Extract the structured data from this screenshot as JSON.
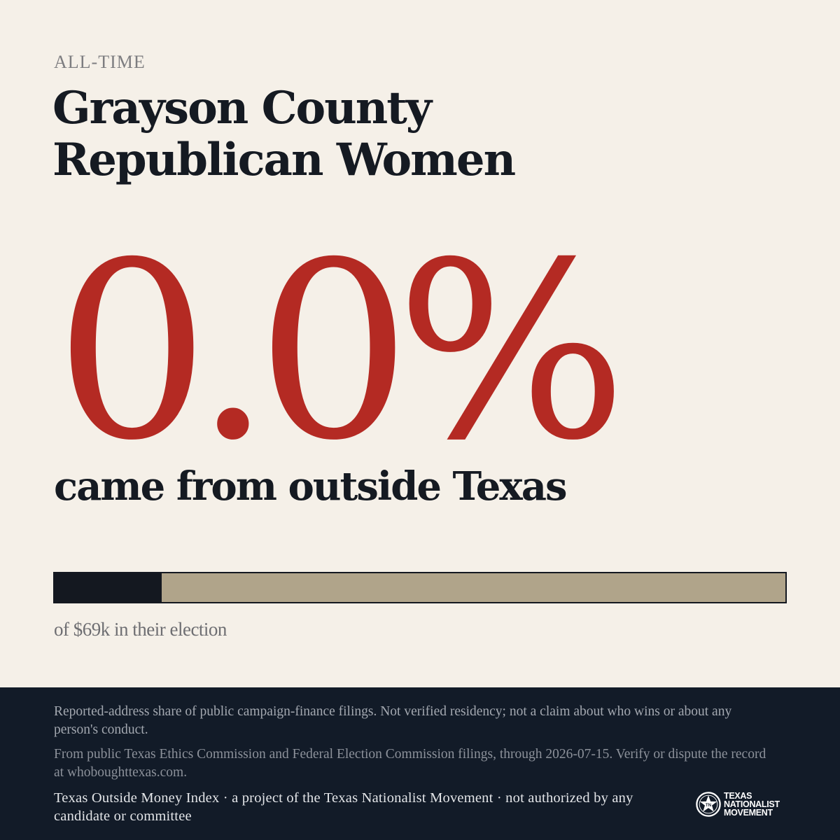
{
  "header": {
    "eyebrow": "ALL-TIME",
    "title": "Grayson County Republican Women"
  },
  "stat": {
    "value": "0.0%",
    "label": "came from outside Texas"
  },
  "bar": {
    "fill_fraction": 0.147,
    "caption": "of $69k in their election",
    "colors": {
      "fill": "#141820",
      "track": "#b0a48a"
    }
  },
  "footer": {
    "disclaimer": "Reported-address share of public campaign-finance filings. Not verified residency; not a claim about who wins or about any person's conduct.",
    "source": "From public Texas Ethics Commission and Federal Election Commission filings, through 2026-07-15. Verify or dispute the record at whoboughttexas.com.",
    "credit": "Texas Outside Money Index · a project of the Texas Nationalist Movement · not authorized by any candidate or committee",
    "logo": {
      "icon": "star-seal-icon",
      "line1": "TEXAS",
      "line2": "NATIONALIST",
      "line3": "MOVEMENT"
    }
  },
  "colors": {
    "background": "#f5f0e8",
    "accent": "#b42a23",
    "ink": "#151a22",
    "footer": "#121b28"
  }
}
